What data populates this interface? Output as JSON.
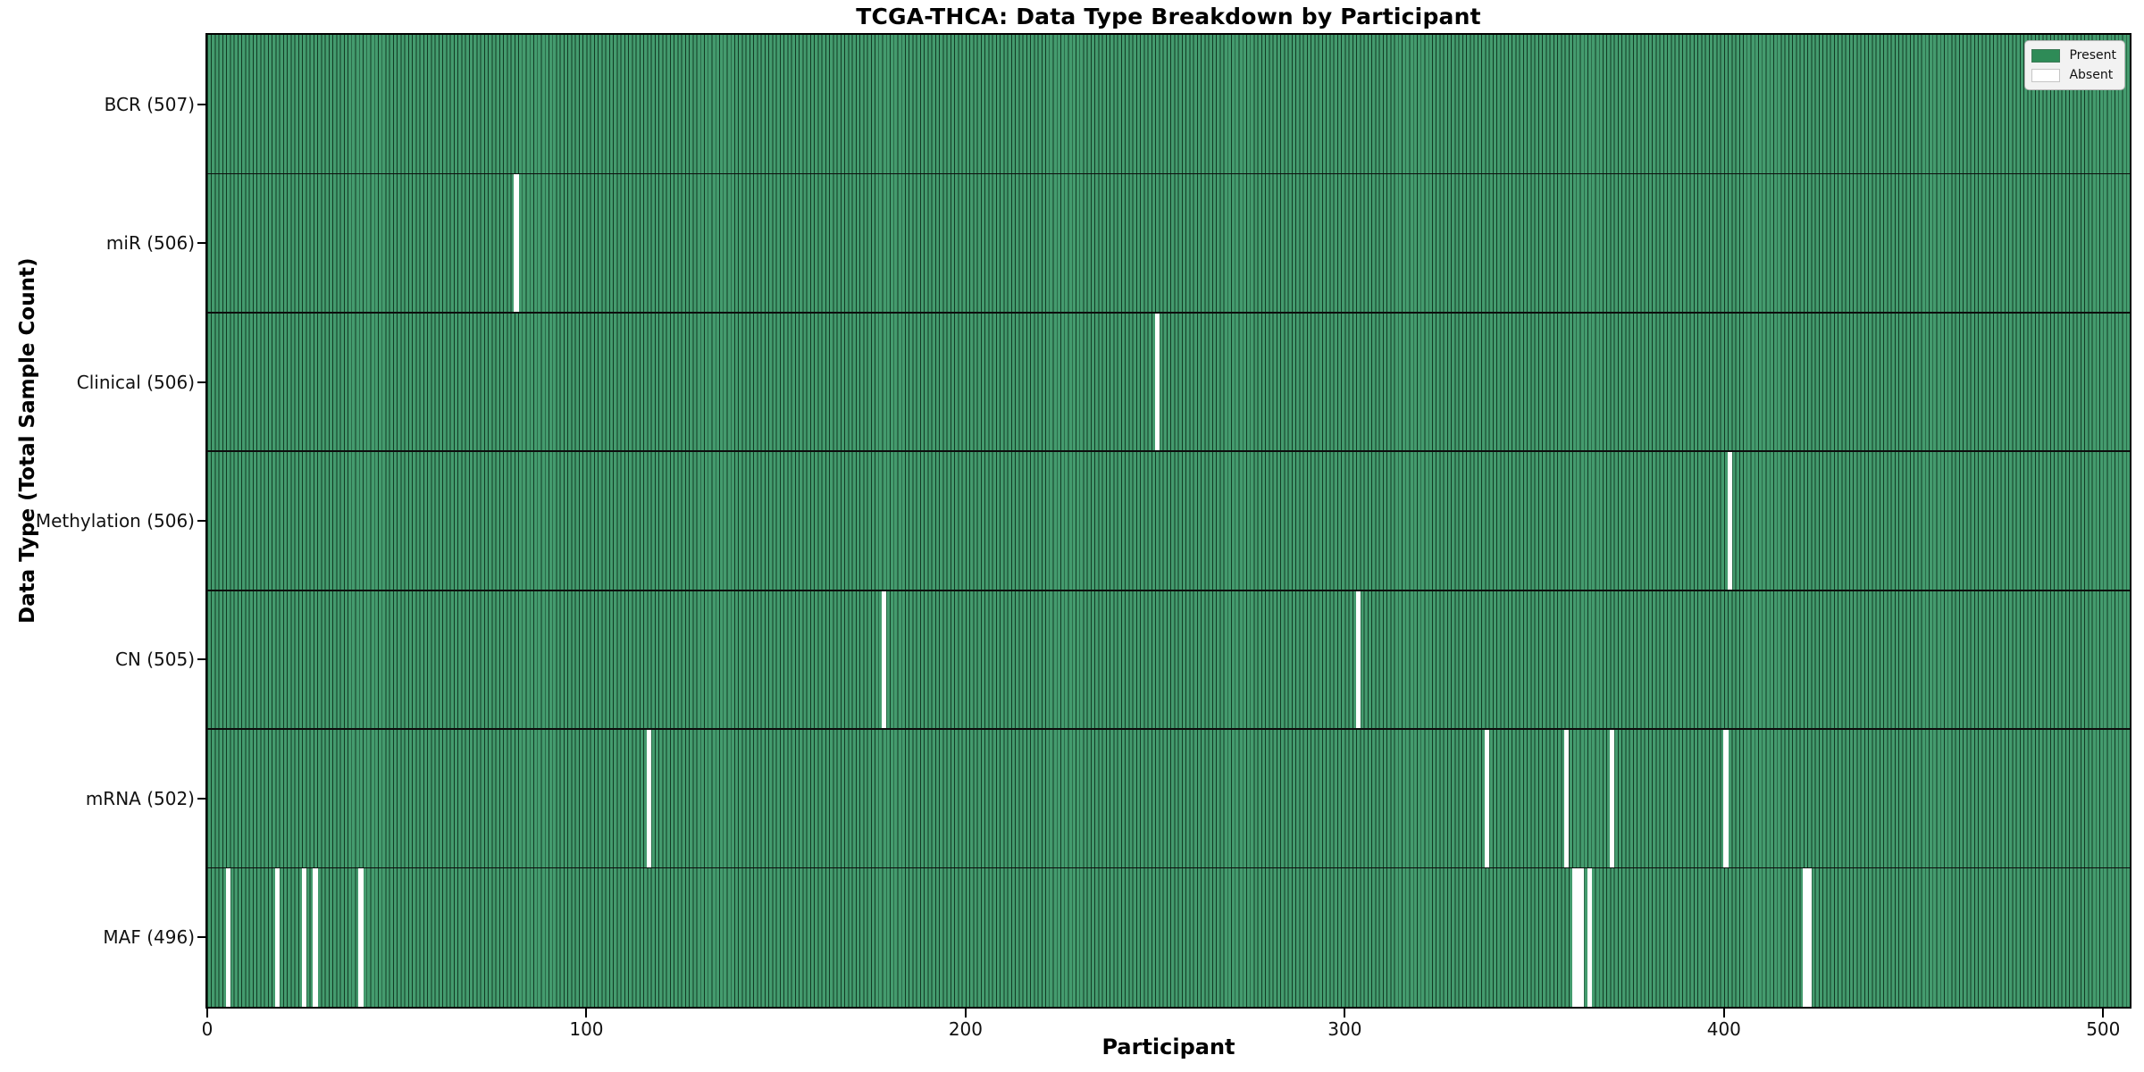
{
  "title": "TCGA-THCA: Data Type Breakdown by Participant",
  "axes": {
    "x_label": "Participant",
    "y_label": "Data Type (Total Sample Count)"
  },
  "colors": {
    "present": "#2e8b57",
    "present_fill": "#449b6e",
    "present_edge": "#123b24",
    "absent": "#ffffff",
    "separator": "#0d0d0d",
    "legend_bg": "#f2f2f2"
  },
  "chart_data": {
    "type": "heatmap",
    "title": "TCGA-THCA: Data Type Breakdown by Participant",
    "xlabel": "Participant",
    "ylabel": "Data Type (Total Sample Count)",
    "n_participants": 507,
    "x_ticks": [
      0,
      100,
      200,
      300,
      400,
      500
    ],
    "xlim": [
      0,
      507
    ],
    "grid": false,
    "legend_position": "upper right",
    "legend": [
      {
        "label": "Present",
        "color": "#2e8b57"
      },
      {
        "label": "Absent",
        "color": "#ffffff"
      }
    ],
    "rows": [
      {
        "label": "BCR (507)",
        "data_type": "BCR",
        "present_count": 507,
        "absent_participants": []
      },
      {
        "label": "miR (506)",
        "data_type": "miR",
        "present_count": 506,
        "absent_participants": [
          81
        ]
      },
      {
        "label": "Clinical (506)",
        "data_type": "Clinical",
        "present_count": 506,
        "absent_participants": [
          250
        ]
      },
      {
        "label": "Methylation (506)",
        "data_type": "Methylation",
        "present_count": 506,
        "absent_participants": [
          401
        ]
      },
      {
        "label": "CN (505)",
        "data_type": "CN",
        "present_count": 505,
        "absent_participants": [
          178,
          303
        ]
      },
      {
        "label": "mRNA (502)",
        "data_type": "mRNA",
        "present_count": 502,
        "absent_participants": [
          116,
          337,
          358,
          370,
          400
        ]
      },
      {
        "label": "MAF (496)",
        "data_type": "MAF",
        "present_count": 496,
        "absent_participants": [
          5,
          18,
          25,
          28,
          40,
          360,
          361,
          362,
          364,
          421,
          422
        ]
      }
    ]
  }
}
